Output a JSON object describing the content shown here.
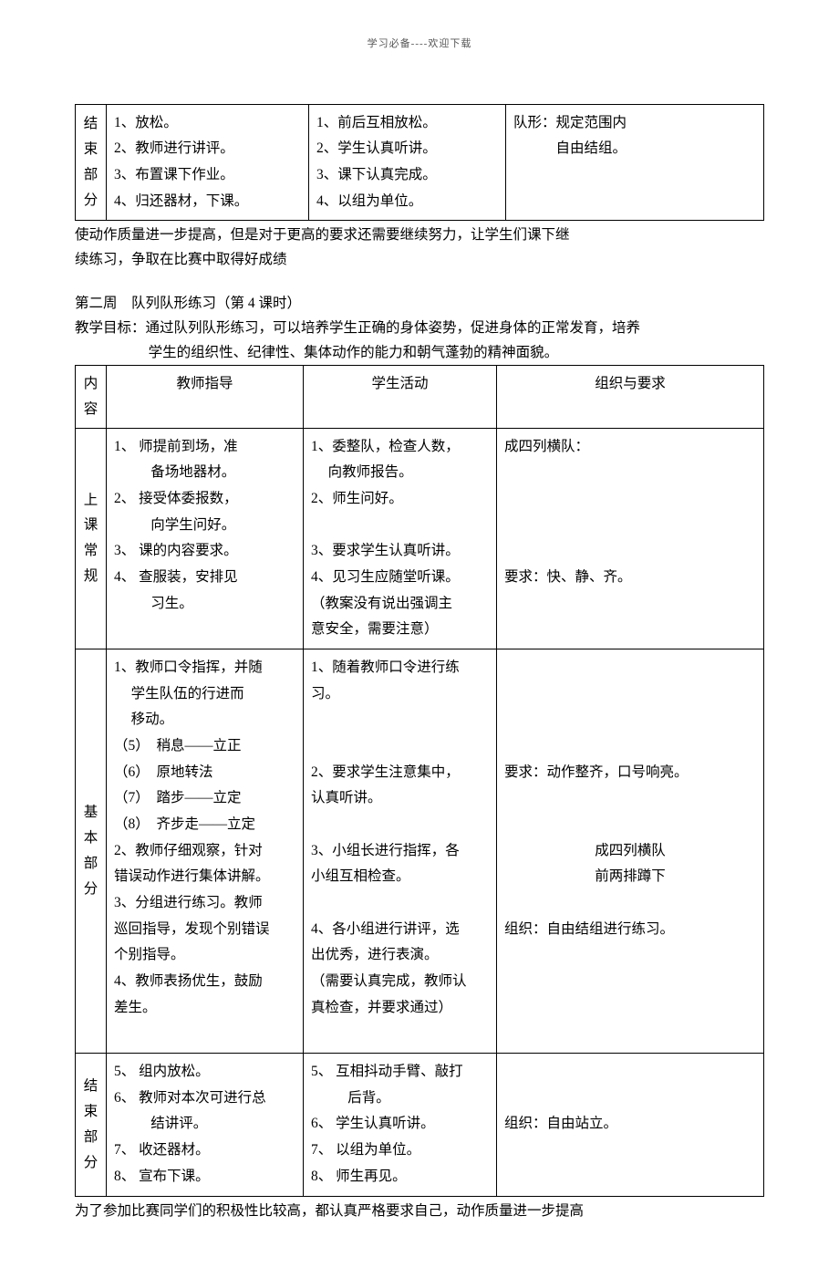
{
  "header_note": "学习必备----欢迎下载",
  "table1": {
    "col_widths": [
      "34px",
      "222px",
      "216px",
      "auto"
    ],
    "row_label_chars": [
      "结",
      "束",
      "部",
      "分"
    ],
    "c2": [
      "1、放松。",
      "2、教师进行讲评。",
      "3、布置课下作业。",
      "4、归还器材，下课。"
    ],
    "c3": [
      "1、前后互相放松。",
      "2、学生认真听讲。",
      "3、课下认真完成。",
      "4、以组为单位。"
    ],
    "c4_l1": "队形：规定范围内",
    "c4_l2": "自由结组。"
  },
  "t1_followup_l1": "使动作质量进一步提高，但是对于更高的要求还需要继续努力，让学生们课下继",
  "t1_followup_l2": "续练习，争取在比赛中取得好成绩",
  "sec2_title": "第二周　队列队形练习（第 4 课时）",
  "sec2_obj_l1": "教学目标：通过队列队形练习，可以培养学生正确的身体姿势，促进身体的正常发育，培养",
  "sec2_obj_l2": "学生的组织性、纪律性、集体动作的能力和朝气蓬勃的精神面貌。",
  "table2": {
    "col_widths": [
      "34px",
      "216px",
      "212px",
      "auto"
    ],
    "head": {
      "c1_chars": [
        "内",
        "容"
      ],
      "c2": "教师指导",
      "c3": "学生活动",
      "c4": "组织与要求"
    },
    "r1": {
      "label_chars": [
        "上",
        "课",
        "常",
        "规"
      ],
      "c2": [
        "1、 师提前到场，准",
        "备场地器材。",
        "2、 接受体委报数，",
        "向学生问好。",
        "3、 课的内容要求。",
        "4、 查服装，安排见",
        "习生。"
      ],
      "c2_kind": [
        "li2",
        "cont2",
        "li2",
        "cont2",
        "li2",
        "li2",
        "cont2"
      ],
      "c3": [
        "1、委整队，检查人数，",
        "向教师报告。",
        "2、师生问好。",
        "",
        "3、要求学生认真听讲。",
        "4、见习生应随堂听课。",
        "（教案没有说出强调主",
        "意安全，需要注意）"
      ],
      "c3_kind": [
        "li",
        "cont",
        "li",
        "plain",
        "li",
        "li",
        "plain",
        "plain"
      ],
      "c4": [
        "成四列横队：",
        "",
        "",
        "",
        "",
        "要求：快、静、齐。"
      ],
      "c4_kind": [
        "plain",
        "plain",
        "plain",
        "plain",
        "plain",
        "plain"
      ]
    },
    "r2": {
      "label_chars": [
        "基",
        "本",
        "部",
        "分"
      ],
      "c2": [
        "1、教师口令指挥，并随",
        "学生队伍的行进而",
        "移动。",
        "（5）　稍息——立正",
        "（6）　原地转法",
        "（7）　踏步——立定",
        "（8）　齐步走——立定",
        "2、教师仔细观察，针对",
        "错误动作进行集体讲解。",
        "3、分组进行练习。教师",
        "巡回指导，发现个别错误",
        "个别指导。",
        "4、教师表扬优生，鼓励",
        "差生。",
        ""
      ],
      "c2_kind": [
        "li",
        "cont",
        "cont",
        "plain",
        "plain",
        "plain",
        "plain",
        "li",
        "plain",
        "li",
        "plain",
        "plain",
        "li",
        "plain",
        "plain"
      ],
      "c3": [
        "1、随着教师口令进行练",
        "习。",
        "",
        "",
        "2、要求学生注意集中，",
        "认真听讲。",
        "",
        "3、小组长进行指挥，各",
        "小组互相检查。",
        "",
        "4、各小组进行讲评，选",
        "出优秀，进行表演。",
        "（需要认真完成，教师认",
        "真检查，并要求通过）",
        ""
      ],
      "c3_kind": [
        "li",
        "plain",
        "plain",
        "plain",
        "li",
        "plain",
        "plain",
        "li",
        "plain",
        "plain",
        "li",
        "plain",
        "plain",
        "plain",
        "plain"
      ],
      "c4": [
        "",
        "",
        "",
        "",
        "要求：动作整齐，口号响亮。",
        "",
        "",
        "成四列横队",
        "前两排蹲下",
        "",
        "组织：自由结组进行练习。",
        "",
        "",
        "",
        ""
      ],
      "c4_kind": [
        "plain",
        "plain",
        "plain",
        "plain",
        "plain",
        "plain",
        "plain",
        "center",
        "center",
        "plain",
        "plain",
        "plain",
        "plain",
        "plain",
        "plain"
      ]
    },
    "r3": {
      "label_chars": [
        "结",
        "束",
        "部",
        "分"
      ],
      "c2": [
        "5、 组内放松。",
        "6、 教师对本次可进行总",
        "结讲评。",
        "7、 收还器材。",
        "8、 宣布下课。"
      ],
      "c2_kind": [
        "li2",
        "li2",
        "cont2",
        "li2",
        "li2"
      ],
      "c3": [
        "5、 互相抖动手臂、敲打",
        "后背。",
        "6、 学生认真听讲。",
        "7、 以组为单位。",
        "8、 师生再见。"
      ],
      "c3_kind": [
        "li2",
        "cont2",
        "li2",
        "li2",
        "li2"
      ],
      "c4": [
        "",
        "",
        "组织：自由站立。",
        "",
        ""
      ],
      "c4_kind": [
        "plain",
        "plain",
        "plain",
        "plain",
        "plain"
      ]
    }
  },
  "footer_para": "为了参加比赛同学们的积极性比较高，都认真严格要求自己，动作质量进一步提高"
}
